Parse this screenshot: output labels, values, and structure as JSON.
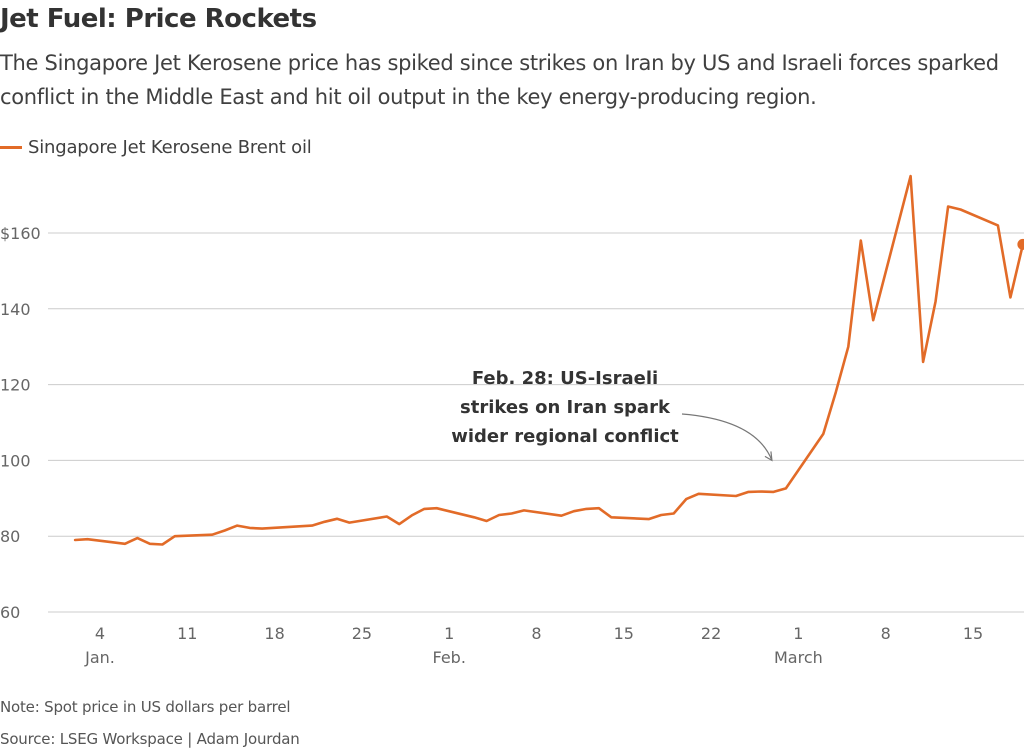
{
  "title": "Jet Fuel: Price Rockets",
  "subtitle": "The Singapore Jet Kerosene price has spiked since strikes on Iran by US and Israeli forces sparked conflict in the Middle East and hit oil output in the key energy-producing region.",
  "legend": {
    "label": "Singapore Jet Kerosene Brent oil"
  },
  "note": "Note: Spot price in US dollars per barrel",
  "source": "Source: LSEG Workspace | Adam Jourdan",
  "chart_data": {
    "type": "line",
    "title": "Jet Fuel: Price Rockets",
    "xlabel": "",
    "ylabel": "",
    "ylim": [
      60,
      180
    ],
    "grid": true,
    "legend_position": "top-left",
    "line_color": "#e26b28",
    "y_ticks": [
      {
        "value": 60,
        "label": "60"
      },
      {
        "value": 80,
        "label": "80"
      },
      {
        "value": 100,
        "label": "100"
      },
      {
        "value": 120,
        "label": "120"
      },
      {
        "value": 140,
        "label": "140"
      },
      {
        "value": 160,
        "label": "$160"
      }
    ],
    "x_ticks": [
      {
        "date": "2026-01-04",
        "day": "4",
        "month": "Jan."
      },
      {
        "date": "2026-01-11",
        "day": "11",
        "month": ""
      },
      {
        "date": "2026-01-18",
        "day": "18",
        "month": ""
      },
      {
        "date": "2026-01-25",
        "day": "25",
        "month": ""
      },
      {
        "date": "2026-02-01",
        "day": "1",
        "month": "Feb."
      },
      {
        "date": "2026-02-08",
        "day": "8",
        "month": ""
      },
      {
        "date": "2026-02-15",
        "day": "15",
        "month": ""
      },
      {
        "date": "2026-02-22",
        "day": "22",
        "month": ""
      },
      {
        "date": "2026-03-01",
        "day": "1",
        "month": "March"
      },
      {
        "date": "2026-03-08",
        "day": "8",
        "month": ""
      },
      {
        "date": "2026-03-15",
        "day": "15",
        "month": ""
      }
    ],
    "series": [
      {
        "name": "Singapore Jet Kerosene Brent oil",
        "points": [
          [
            "2026-01-02",
            79.0
          ],
          [
            "2026-01-03",
            79.2
          ],
          [
            "2026-01-06",
            78.0
          ],
          [
            "2026-01-07",
            79.5
          ],
          [
            "2026-01-08",
            78.0
          ],
          [
            "2026-01-09",
            77.8
          ],
          [
            "2026-01-10",
            80.0
          ],
          [
            "2026-01-13",
            80.4
          ],
          [
            "2026-01-14",
            81.5
          ],
          [
            "2026-01-15",
            82.8
          ],
          [
            "2026-01-16",
            82.2
          ],
          [
            "2026-01-17",
            82.0
          ],
          [
            "2026-01-20",
            82.6
          ],
          [
            "2026-01-21",
            82.8
          ],
          [
            "2026-01-22",
            83.8
          ],
          [
            "2026-01-23",
            84.6
          ],
          [
            "2026-01-24",
            83.6
          ],
          [
            "2026-01-27",
            85.2
          ],
          [
            "2026-01-28",
            83.2
          ],
          [
            "2026-01-29",
            85.5
          ],
          [
            "2026-01-30",
            87.2
          ],
          [
            "2026-01-31",
            87.4
          ],
          [
            "2026-02-03",
            85.0
          ],
          [
            "2026-02-04",
            84.0
          ],
          [
            "2026-02-05",
            85.6
          ],
          [
            "2026-02-06",
            86.0
          ],
          [
            "2026-02-07",
            86.8
          ],
          [
            "2026-02-10",
            85.4
          ],
          [
            "2026-02-11",
            86.6
          ],
          [
            "2026-02-12",
            87.2
          ],
          [
            "2026-02-13",
            87.4
          ],
          [
            "2026-02-14",
            85.0
          ],
          [
            "2026-02-17",
            84.5
          ],
          [
            "2026-02-18",
            85.6
          ],
          [
            "2026-02-19",
            86.0
          ],
          [
            "2026-02-20",
            89.8
          ],
          [
            "2026-02-21",
            91.2
          ],
          [
            "2026-02-24",
            90.6
          ],
          [
            "2026-02-25",
            91.7
          ],
          [
            "2026-02-26",
            91.8
          ],
          [
            "2026-02-27",
            91.7
          ],
          [
            "2026-02-28",
            92.6
          ],
          [
            "2026-03-03",
            107.0
          ],
          [
            "2026-03-04",
            118.0
          ],
          [
            "2026-03-05",
            130.0
          ],
          [
            "2026-03-06",
            158.0
          ],
          [
            "2026-03-07",
            137.0
          ],
          [
            "2026-03-10",
            175.0
          ],
          [
            "2026-03-11",
            126.0
          ],
          [
            "2026-03-12",
            142.0
          ],
          [
            "2026-03-13",
            167.0
          ],
          [
            "2026-03-14",
            166.2
          ],
          [
            "2026-03-17",
            162.0
          ],
          [
            "2026-03-18",
            143.0
          ],
          [
            "2026-03-19",
            157.0
          ]
        ]
      }
    ],
    "annotations": [
      {
        "lines": [
          "Feb. 28: US-Israeli",
          "strikes on Iran spark",
          "wider regional conflict"
        ],
        "date": "2026-02-28",
        "value": 100
      }
    ]
  }
}
